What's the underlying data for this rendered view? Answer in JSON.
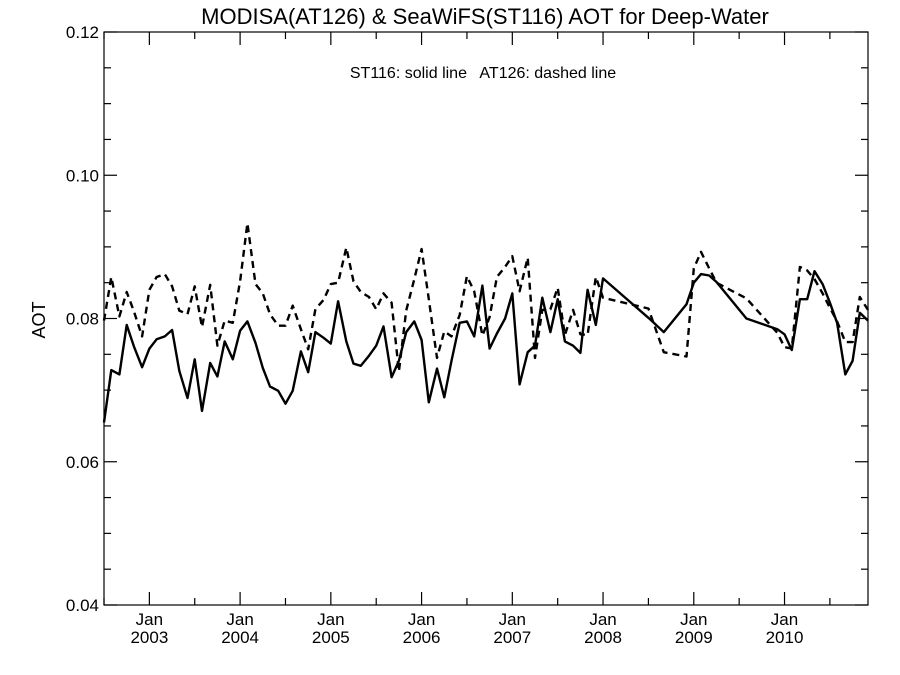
{
  "chart_data": {
    "type": "line",
    "title": "MODISA(AT126) & SeaWiFS(ST116)  AOT for Deep-Water",
    "annotation": "ST116: solid line   AT126: dashed line",
    "ylabel": "AOT",
    "xlabel": "",
    "xlim": [
      2002.5,
      2010.92
    ],
    "ylim": [
      0.04,
      0.12
    ],
    "grid": false,
    "yticks": [
      {
        "value": 0.04,
        "label": "0.04"
      },
      {
        "value": 0.06,
        "label": "0.06"
      },
      {
        "value": 0.08,
        "label": "0.08"
      },
      {
        "value": 0.1,
        "label": "0.10"
      },
      {
        "value": 0.12,
        "label": "0.12"
      }
    ],
    "xticks": [
      {
        "value": 2003.0,
        "month": "Jan",
        "year": "2003"
      },
      {
        "value": 2004.0,
        "month": "Jan",
        "year": "2004"
      },
      {
        "value": 2005.0,
        "month": "Jan",
        "year": "2005"
      },
      {
        "value": 2006.0,
        "month": "Jan",
        "year": "2006"
      },
      {
        "value": 2007.0,
        "month": "Jan",
        "year": "2007"
      },
      {
        "value": 2008.0,
        "month": "Jan",
        "year": "2008"
      },
      {
        "value": 2009.0,
        "month": "Jan",
        "year": "2009"
      },
      {
        "value": 2010.0,
        "month": "Jan",
        "year": "2010"
      }
    ],
    "series": [
      {
        "name": "ST116",
        "style": "solid",
        "x": [
          2002.5,
          2002.58,
          2002.67,
          2002.75,
          2002.83,
          2002.92,
          2003.0,
          2003.08,
          2003.17,
          2003.25,
          2003.33,
          2003.42,
          2003.5,
          2003.58,
          2003.67,
          2003.75,
          2003.83,
          2003.92,
          2004.0,
          2004.08,
          2004.17,
          2004.25,
          2004.33,
          2004.42,
          2004.5,
          2004.58,
          2004.67,
          2004.75,
          2004.83,
          2004.92,
          2005.0,
          2005.08,
          2005.17,
          2005.25,
          2005.33,
          2005.42,
          2005.5,
          2005.58,
          2005.67,
          2005.75,
          2005.83,
          2005.92,
          2006.0,
          2006.08,
          2006.17,
          2006.25,
          2006.33,
          2006.42,
          2006.5,
          2006.58,
          2006.67,
          2006.75,
          2006.83,
          2006.92,
          2007.0,
          2007.08,
          2007.17,
          2007.25,
          2007.33,
          2007.42,
          2007.5,
          2007.58,
          2007.67,
          2007.75,
          2007.83,
          2007.92,
          2008.0,
          2008.5,
          2008.67,
          2008.92,
          2009.0,
          2009.08,
          2009.17,
          2009.25,
          2009.58,
          2009.92,
          2010.0,
          2010.08,
          2010.17,
          2010.25,
          2010.33,
          2010.42,
          2010.5,
          2010.58,
          2010.67,
          2010.75,
          2010.83,
          2010.92
        ],
        "values": [
          0.0655,
          0.0728,
          0.0722,
          0.0791,
          0.0761,
          0.0732,
          0.0758,
          0.0771,
          0.0775,
          0.0784,
          0.0727,
          0.0689,
          0.0743,
          0.0671,
          0.0738,
          0.0719,
          0.0768,
          0.0743,
          0.0783,
          0.0796,
          0.0766,
          0.0731,
          0.0705,
          0.0699,
          0.0681,
          0.0699,
          0.0754,
          0.0725,
          0.0781,
          0.0773,
          0.0765,
          0.0824,
          0.0768,
          0.0737,
          0.0734,
          0.0748,
          0.0762,
          0.0789,
          0.0718,
          0.0741,
          0.0781,
          0.0796,
          0.077,
          0.0683,
          0.073,
          0.069,
          0.0741,
          0.0794,
          0.0796,
          0.0775,
          0.0846,
          0.0758,
          0.0779,
          0.08,
          0.0835,
          0.0708,
          0.0753,
          0.0762,
          0.0829,
          0.0781,
          0.0827,
          0.0768,
          0.0762,
          0.0752,
          0.084,
          0.0791,
          0.0856,
          0.0801,
          0.0781,
          0.082,
          0.085,
          0.0862,
          0.086,
          0.0851,
          0.08,
          0.0785,
          0.0778,
          0.0756,
          0.0827,
          0.0827,
          0.0866,
          0.0848,
          0.0822,
          0.0794,
          0.0722,
          0.0741,
          0.0808,
          0.0797
        ]
      },
      {
        "name": "AT126",
        "style": "dashed",
        "x": [
          2002.5,
          2002.58,
          2002.67,
          2002.75,
          2002.83,
          2002.92,
          2003.0,
          2003.08,
          2003.17,
          2003.25,
          2003.33,
          2003.42,
          2003.5,
          2003.58,
          2003.67,
          2003.75,
          2003.83,
          2003.92,
          2004.0,
          2004.08,
          2004.17,
          2004.25,
          2004.33,
          2004.42,
          2004.5,
          2004.58,
          2004.67,
          2004.75,
          2004.83,
          2004.92,
          2005.0,
          2005.08,
          2005.17,
          2005.25,
          2005.33,
          2005.42,
          2005.5,
          2005.58,
          2005.67,
          2005.75,
          2005.83,
          2005.92,
          2006.0,
          2006.08,
          2006.17,
          2006.25,
          2006.33,
          2006.42,
          2006.5,
          2006.58,
          2006.67,
          2006.75,
          2006.83,
          2006.92,
          2007.0,
          2007.08,
          2007.17,
          2007.25,
          2007.33,
          2007.42,
          2007.5,
          2007.58,
          2007.67,
          2007.75,
          2007.83,
          2007.92,
          2008.0,
          2008.5,
          2008.67,
          2008.92,
          2009.0,
          2009.08,
          2009.17,
          2009.25,
          2009.58,
          2009.92,
          2010.0,
          2010.08,
          2010.17,
          2010.25,
          2010.33,
          2010.42,
          2010.5,
          2010.58,
          2010.67,
          2010.75,
          2010.83,
          2010.92
        ],
        "values": [
          0.0797,
          0.0858,
          0.0803,
          0.0837,
          0.081,
          0.0775,
          0.084,
          0.0858,
          0.0862,
          0.0845,
          0.0811,
          0.0806,
          0.0845,
          0.0788,
          0.0847,
          0.0762,
          0.0797,
          0.0794,
          0.0852,
          0.0933,
          0.0848,
          0.0835,
          0.0806,
          0.079,
          0.079,
          0.0818,
          0.0785,
          0.0757,
          0.0813,
          0.0826,
          0.0848,
          0.085,
          0.0899,
          0.0852,
          0.0837,
          0.083,
          0.0813,
          0.0835,
          0.0822,
          0.0726,
          0.0811,
          0.0855,
          0.0897,
          0.0827,
          0.0745,
          0.0782,
          0.0775,
          0.0805,
          0.0859,
          0.0838,
          0.0776,
          0.0802,
          0.0858,
          0.0872,
          0.0887,
          0.0838,
          0.0885,
          0.0745,
          0.0812,
          0.0813,
          0.0843,
          0.0777,
          0.0812,
          0.0778,
          0.0777,
          0.0858,
          0.0829,
          0.0814,
          0.0753,
          0.0747,
          0.087,
          0.0893,
          0.087,
          0.085,
          0.0828,
          0.078,
          0.076,
          0.0758,
          0.0872,
          0.0867,
          0.0855,
          0.0835,
          0.0815,
          0.0796,
          0.0767,
          0.0767,
          0.083,
          0.0812
        ]
      }
    ]
  }
}
